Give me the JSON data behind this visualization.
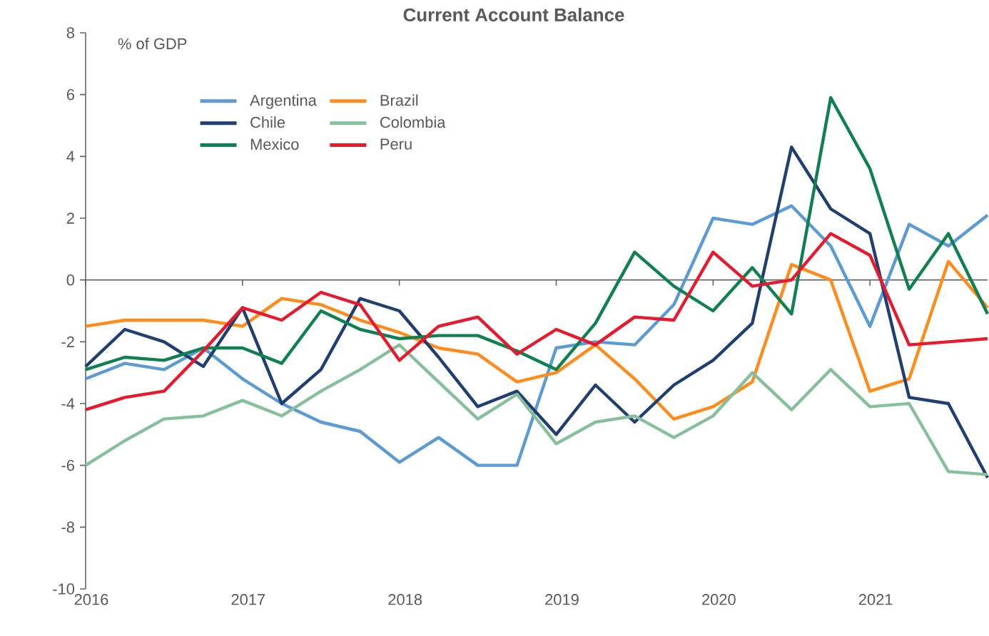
{
  "chart_data": {
    "type": "line",
    "title": "Current Account Balance",
    "ylabel": "% of GDP",
    "x": [
      2016,
      2016.25,
      2016.5,
      2016.75,
      2017,
      2017.25,
      2017.5,
      2017.75,
      2018,
      2018.25,
      2018.5,
      2018.75,
      2019,
      2019.25,
      2019.5,
      2019.75,
      2020,
      2020.25,
      2020.5,
      2020.75,
      2021,
      2021.25,
      2021.5,
      2021.75
    ],
    "xlim": [
      2016,
      2021.75
    ],
    "xticks": [
      2016,
      2017,
      2018,
      2019,
      2020,
      2021
    ],
    "ylim": [
      -10,
      8
    ],
    "yticks": [
      -10,
      -8,
      -6,
      -4,
      -2,
      0,
      2,
      4,
      6,
      8
    ],
    "grid": false,
    "ref_lines": [
      {
        "axis": "y",
        "value": 0
      }
    ],
    "legend": "top",
    "marker": "none",
    "line_style": "solid",
    "series": [
      {
        "name": "Argentina",
        "color": "#5b9bd5",
        "values": [
          -3.2,
          -2.7,
          -2.9,
          -2.2,
          -3.2,
          -4.0,
          -4.6,
          -4.9,
          -5.9,
          -5.1,
          -6.0,
          -6.0,
          -2.2,
          -2.0,
          -2.1,
          -0.8,
          2.0,
          1.8,
          2.4,
          1.1,
          -1.5,
          1.8,
          1.1,
          2.1
        ]
      },
      {
        "name": "Brazil",
        "color": "#ff8c1a",
        "values": [
          -1.5,
          -1.3,
          -1.3,
          -1.3,
          -1.5,
          -0.6,
          -0.8,
          -1.3,
          -1.7,
          -2.2,
          -2.4,
          -3.3,
          -3.0,
          -2.1,
          -3.2,
          -4.5,
          -4.1,
          -3.3,
          0.5,
          0.0,
          -3.6,
          -3.2,
          0.6,
          -0.9
        ]
      },
      {
        "name": "Chile",
        "color": "#1f3f73",
        "values": [
          -2.8,
          -1.6,
          -2.0,
          -2.8,
          -0.9,
          -4.0,
          -2.9,
          -0.6,
          -1.0,
          -2.5,
          -4.1,
          -3.6,
          -5.0,
          -3.4,
          -4.6,
          -3.4,
          -2.6,
          -1.4,
          4.3,
          2.3,
          1.5,
          -3.8,
          -4.0,
          -6.4
        ]
      },
      {
        "name": "Colombia",
        "color": "#86c09b",
        "values": [
          -6.0,
          -5.2,
          -4.5,
          -4.4,
          -3.9,
          -4.4,
          -3.6,
          -2.9,
          -2.1,
          -3.3,
          -4.5,
          -3.7,
          -5.3,
          -4.6,
          -4.4,
          -5.1,
          -4.4,
          -3.0,
          -4.2,
          -2.9,
          -4.1,
          -4.0,
          -6.2,
          -6.3
        ]
      },
      {
        "name": "Mexico",
        "color": "#0f8050",
        "values": [
          -2.9,
          -2.5,
          -2.6,
          -2.2,
          -2.2,
          -2.7,
          -1.0,
          -1.6,
          -1.9,
          -1.8,
          -1.8,
          -2.3,
          -2.9,
          -1.4,
          0.9,
          -0.2,
          -1.0,
          0.4,
          -1.1,
          5.9,
          3.6,
          -0.3,
          1.5,
          -1.1
        ]
      },
      {
        "name": "Peru",
        "color": "#e8192c",
        "values": [
          -4.2,
          -3.8,
          -3.6,
          -2.3,
          -0.9,
          -1.3,
          -0.4,
          -0.8,
          -2.6,
          -1.5,
          -1.2,
          -2.4,
          -1.6,
          -2.1,
          -1.2,
          -1.3,
          0.9,
          -0.2,
          0.0,
          1.5,
          0.8,
          -2.1,
          -2.0,
          -1.9
        ]
      }
    ]
  }
}
